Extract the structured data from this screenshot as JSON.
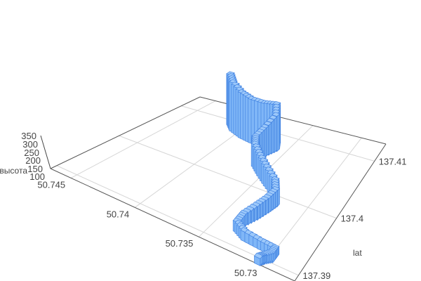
{
  "chart_data": {
    "type": "bar3d",
    "x_axis": {
      "title": "",
      "ticks": [
        "50.745",
        "50.74",
        "50.735",
        "50.73"
      ],
      "tick_values": [
        50.745,
        50.74,
        50.735,
        50.73
      ],
      "range": [
        50.7275,
        50.7466
      ]
    },
    "y_axis": {
      "title": "lat",
      "ticks": [
        "137.39",
        "137.4",
        "137.41"
      ],
      "tick_values": [
        137.39,
        137.4,
        137.41
      ],
      "range": [
        137.389,
        137.413
      ]
    },
    "z_axis": {
      "title": "высота",
      "ticks": [
        "350",
        "300",
        "250",
        "200",
        "150",
        "100"
      ],
      "tick_values": [
        350,
        300,
        250,
        200,
        150,
        100
      ]
    },
    "grid": true,
    "bar_color": "#7fb6f7",
    "bar_edge_color": "#3d7fe0",
    "points": [
      {
        "lon": 50.7413,
        "lat": 137.4092,
        "z": 340
      },
      {
        "lon": 50.7405,
        "lat": 137.4082,
        "z": 330
      },
      {
        "lon": 50.7393,
        "lat": 137.4075,
        "z": 310
      },
      {
        "lon": 50.7382,
        "lat": 137.4072,
        "z": 300
      },
      {
        "lon": 50.7371,
        "lat": 137.4075,
        "z": 290
      },
      {
        "lon": 50.7363,
        "lat": 137.4082,
        "z": 280
      },
      {
        "lon": 50.7359,
        "lat": 137.4072,
        "z": 250
      },
      {
        "lon": 50.7363,
        "lat": 137.4058,
        "z": 210
      },
      {
        "lon": 50.7365,
        "lat": 137.4044,
        "z": 190
      },
      {
        "lon": 50.7361,
        "lat": 137.4034,
        "z": 180
      },
      {
        "lon": 50.7351,
        "lat": 137.4022,
        "z": 170
      },
      {
        "lon": 50.734,
        "lat": 137.401,
        "z": 160
      },
      {
        "lon": 50.7328,
        "lat": 137.3998,
        "z": 150
      },
      {
        "lon": 50.7323,
        "lat": 137.3986,
        "z": 140
      },
      {
        "lon": 50.7325,
        "lat": 137.3972,
        "z": 130
      },
      {
        "lon": 50.7328,
        "lat": 137.3955,
        "z": 125
      },
      {
        "lon": 50.7332,
        "lat": 137.3938,
        "z": 115
      },
      {
        "lon": 50.7332,
        "lat": 137.3924,
        "z": 110
      },
      {
        "lon": 50.7323,
        "lat": 137.3916,
        "z": 105
      },
      {
        "lon": 50.7309,
        "lat": 137.3914,
        "z": 100
      },
      {
        "lon": 50.7298,
        "lat": 137.3914,
        "z": 95
      },
      {
        "lon": 50.7298,
        "lat": 137.3904,
        "z": 95
      },
      {
        "lon": 50.7302,
        "lat": 137.3897,
        "z": 90
      },
      {
        "lon": 50.7304,
        "lat": 137.3892,
        "z": 90
      }
    ]
  }
}
